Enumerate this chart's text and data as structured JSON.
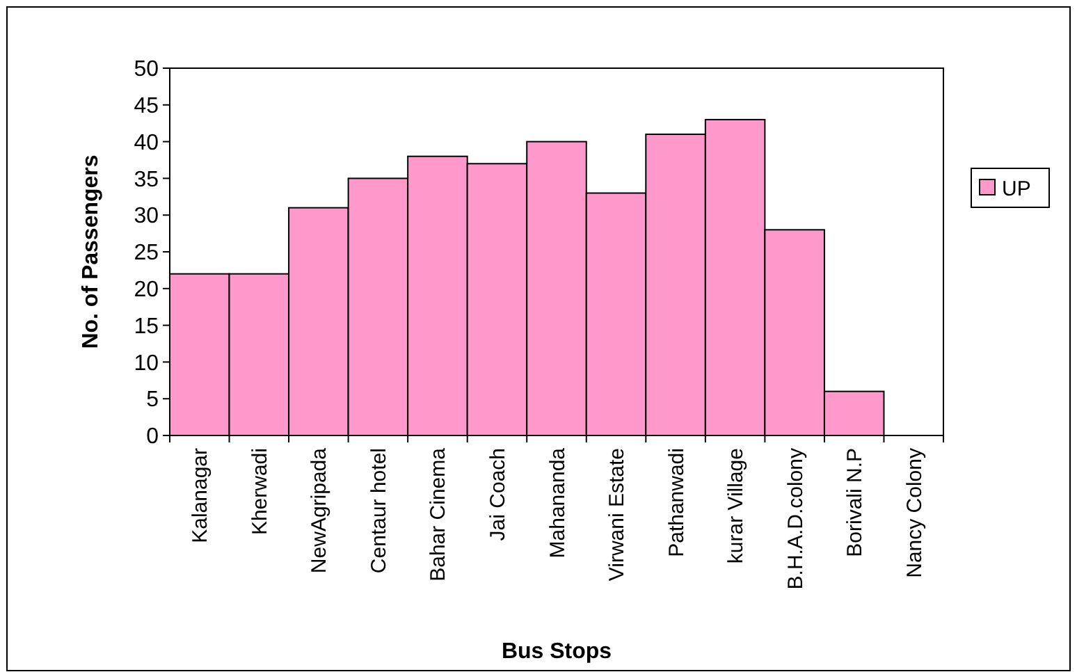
{
  "chart_data": {
    "type": "bar",
    "xlabel": "Bus Stops",
    "ylabel": "No. of Passengers",
    "categories": [
      "Kalanagar",
      "Kherwadi",
      "NewAgripada",
      "Centaur hotel",
      "Bahar Cinema",
      "Jai Coach",
      "Mahananda",
      "Virwani Estate",
      "Pathanwadi",
      "kurar Village",
      "B.H.A.D.colony",
      "Borivali N.P",
      "Nancy Colony"
    ],
    "series": [
      {
        "name": "UP",
        "color": "#ff99cc",
        "values": [
          22,
          22,
          31,
          35,
          38,
          37,
          40,
          33,
          41,
          43,
          28,
          6,
          0
        ]
      }
    ],
    "ylim": [
      0,
      50
    ],
    "yticks": [
      0,
      5,
      10,
      15,
      20,
      25,
      30,
      35,
      40,
      45,
      50
    ],
    "grid": false,
    "legend": "right"
  }
}
